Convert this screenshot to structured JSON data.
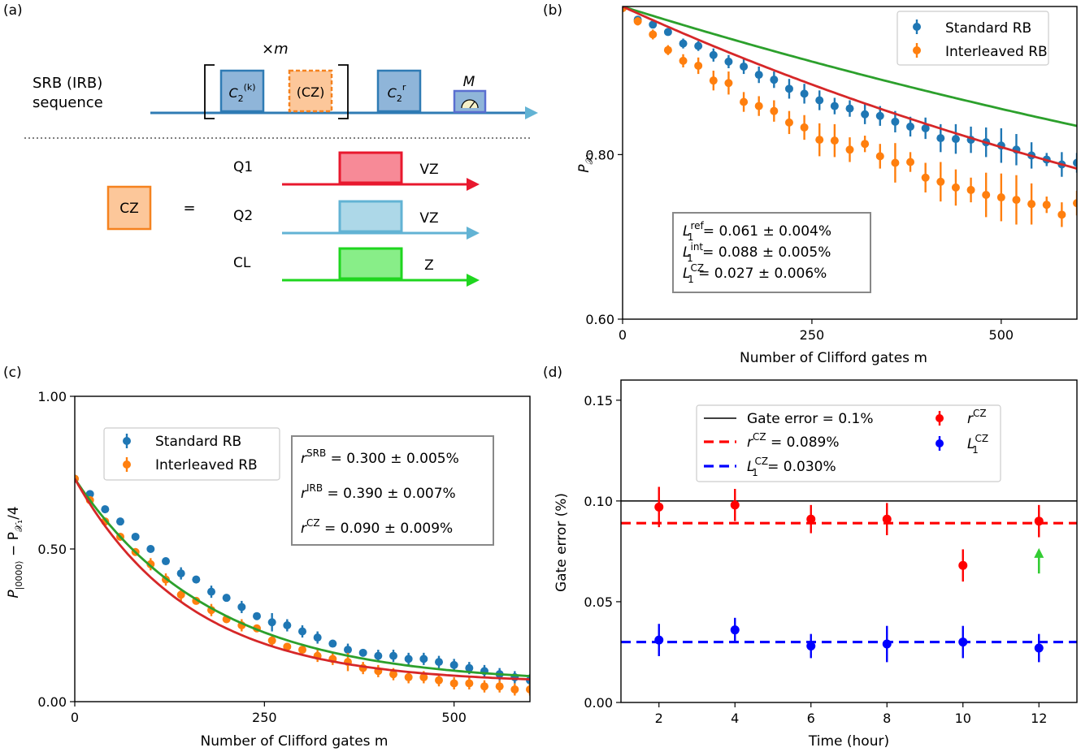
{
  "panel_labels": {
    "a": "(a)",
    "b": "(b)",
    "c": "(c)",
    "d": "(d)"
  },
  "diagram": {
    "sequence_label_line1": "SRB (IRB)",
    "sequence_label_line2": "sequence",
    "repeat_label": "×m",
    "gate_c2k_main": "C",
    "gate_c2k_sub": "2",
    "gate_c2k_sup": "(k)",
    "gate_cz_paren": "(CZ)",
    "gate_c2r_main": "C",
    "gate_c2r_sub": "2",
    "gate_c2r_sup": "r",
    "measure_label": "M",
    "cz_box": "CZ",
    "equals": "=",
    "lines": [
      {
        "label": "Q1",
        "suffix": "VZ",
        "color": "#e8182e",
        "fill": "#f78a97"
      },
      {
        "label": "Q2",
        "suffix": "VZ",
        "color": "#62b3d4",
        "fill": "#add8e8"
      },
      {
        "label": "CL",
        "suffix": "Z",
        "color": "#1fd61f",
        "fill": "#88ee88"
      }
    ],
    "colors": {
      "seq_line": "#2f7bb4",
      "gate_fill": "#8fb5d9",
      "gate_edge": "#2f7bb4",
      "cz_fill": "#fcc79a",
      "cz_edge": "#f5821f"
    }
  },
  "chart_data": [
    {
      "id": "b",
      "type": "scatter",
      "xlabel": "Number of Clifford gates m",
      "ylabel_main": "P",
      "ylabel_sub": "𝒳₁",
      "xlim": [
        0,
        600
      ],
      "ylim": [
        0.6,
        0.98
      ],
      "xticks": [
        0,
        250,
        500
      ],
      "yticks": [
        0.6,
        0.8
      ],
      "xtick_labels": [
        "0",
        "250",
        "500"
      ],
      "ytick_labels": [
        "0.60",
        "0.80"
      ],
      "legend": [
        "Standard RB",
        "Interleaved RB"
      ],
      "fit_model": {
        "asymptote": 0.5,
        "p_srb": 0.9994,
        "p_irb": 0.99912,
        "a": 0.48
      },
      "series": [
        {
          "name": "Standard RB",
          "color": "#1f77b4",
          "fit_color": "#2ca02c",
          "x": [
            0,
            20,
            40,
            60,
            80,
            100,
            120,
            140,
            160,
            180,
            200,
            220,
            240,
            260,
            280,
            300,
            320,
            340,
            360,
            380,
            400,
            420,
            440,
            460,
            480,
            500,
            520,
            540,
            560,
            580,
            600
          ],
          "y": [
            0.978,
            0.964,
            0.958,
            0.949,
            0.935,
            0.932,
            0.921,
            0.913,
            0.907,
            0.897,
            0.891,
            0.88,
            0.874,
            0.866,
            0.859,
            0.856,
            0.849,
            0.847,
            0.84,
            0.834,
            0.832,
            0.82,
            0.819,
            0.818,
            0.815,
            0.811,
            0.806,
            0.799,
            0.794,
            0.788,
            0.79
          ],
          "err": [
            0.003,
            0.004,
            0.004,
            0.004,
            0.006,
            0.006,
            0.008,
            0.008,
            0.009,
            0.01,
            0.01,
            0.012,
            0.012,
            0.012,
            0.01,
            0.01,
            0.012,
            0.012,
            0.013,
            0.012,
            0.013,
            0.017,
            0.018,
            0.016,
            0.018,
            0.021,
            0.019,
            0.016,
            0.008,
            0.015,
            0.012
          ]
        },
        {
          "name": "Interleaved RB",
          "color": "#ff7f0e",
          "fit_color": "#d62728",
          "x": [
            0,
            20,
            40,
            60,
            80,
            100,
            120,
            140,
            160,
            180,
            200,
            220,
            240,
            260,
            280,
            300,
            320,
            340,
            360,
            380,
            400,
            420,
            440,
            460,
            480,
            500,
            520,
            540,
            560,
            580,
            600
          ],
          "y": [
            0.978,
            0.962,
            0.946,
            0.927,
            0.914,
            0.908,
            0.89,
            0.887,
            0.864,
            0.859,
            0.853,
            0.839,
            0.833,
            0.818,
            0.817,
            0.806,
            0.813,
            0.798,
            0.79,
            0.791,
            0.772,
            0.767,
            0.76,
            0.757,
            0.751,
            0.748,
            0.745,
            0.74,
            0.739,
            0.727,
            0.741
          ],
          "err": [
            0.003,
            0.005,
            0.006,
            0.006,
            0.008,
            0.01,
            0.012,
            0.014,
            0.012,
            0.012,
            0.013,
            0.014,
            0.015,
            0.02,
            0.02,
            0.015,
            0.01,
            0.015,
            0.024,
            0.012,
            0.018,
            0.024,
            0.022,
            0.015,
            0.027,
            0.029,
            0.03,
            0.025,
            0.01,
            0.015,
            0.015
          ]
        }
      ],
      "annotation_lines": [
        {
          "sym": "L",
          "sub": "1",
          "sup": "ref",
          "value": " = 0.061 ± 0.004%"
        },
        {
          "sym": "L",
          "sub": "1",
          "sup": "int",
          "value": " = 0.088 ± 0.005%"
        },
        {
          "sym": "L",
          "sub": "1",
          "sup": "CZ",
          "value": " = 0.027 ± 0.006%"
        }
      ]
    },
    {
      "id": "c",
      "type": "scatter",
      "xlabel": "Number of Clifford gates m",
      "ylabel_main": "P",
      "ylabel_ket": "|0000⟩",
      "ylabel_rest": " − P",
      "ylabel_sub2": "𝒳₁",
      "ylabel_tail": "/4",
      "xlim": [
        0,
        600
      ],
      "ylim": [
        0,
        1.0
      ],
      "xticks": [
        0,
        250,
        500
      ],
      "yticks": [
        0,
        0.5,
        1.0
      ],
      "xtick_labels": [
        "0",
        "250",
        "500"
      ],
      "ytick_labels": [
        "0.00",
        "0.50",
        "1.00"
      ],
      "legend": [
        "Standard RB",
        "Interleaved RB"
      ],
      "fit_model": {
        "asymptote": 0.06,
        "p_srb": 0.99445,
        "p_irb": 0.99345,
        "a": 0.67
      },
      "series": [
        {
          "name": "Standard RB",
          "color": "#1f77b4",
          "fit_color": "#2ca02c",
          "x": [
            0,
            20,
            40,
            60,
            80,
            100,
            120,
            140,
            160,
            180,
            200,
            220,
            240,
            260,
            280,
            300,
            320,
            340,
            360,
            380,
            400,
            420,
            440,
            460,
            480,
            500,
            520,
            540,
            560,
            580,
            600
          ],
          "y": [
            0.73,
            0.68,
            0.63,
            0.59,
            0.54,
            0.5,
            0.46,
            0.42,
            0.4,
            0.36,
            0.34,
            0.31,
            0.28,
            0.26,
            0.25,
            0.23,
            0.21,
            0.19,
            0.17,
            0.16,
            0.15,
            0.15,
            0.14,
            0.14,
            0.13,
            0.12,
            0.11,
            0.1,
            0.09,
            0.08,
            0.07
          ],
          "err": [
            0.01,
            0.01,
            0.01,
            0.01,
            0.01,
            0.01,
            0.01,
            0.02,
            0.01,
            0.02,
            0.01,
            0.02,
            0.01,
            0.03,
            0.02,
            0.02,
            0.02,
            0.01,
            0.02,
            0.01,
            0.02,
            0.02,
            0.02,
            0.02,
            0.02,
            0.02,
            0.02,
            0.02,
            0.02,
            0.02,
            0.02
          ]
        },
        {
          "name": "Interleaved RB",
          "color": "#ff7f0e",
          "fit_color": "#d62728",
          "x": [
            0,
            20,
            40,
            60,
            80,
            100,
            120,
            140,
            160,
            180,
            200,
            220,
            240,
            260,
            280,
            300,
            320,
            340,
            360,
            380,
            400,
            420,
            440,
            460,
            480,
            500,
            520,
            540,
            560,
            580,
            600
          ],
          "y": [
            0.73,
            0.66,
            0.59,
            0.54,
            0.49,
            0.45,
            0.4,
            0.35,
            0.33,
            0.3,
            0.27,
            0.25,
            0.24,
            0.2,
            0.18,
            0.17,
            0.15,
            0.14,
            0.13,
            0.11,
            0.1,
            0.09,
            0.08,
            0.08,
            0.07,
            0.06,
            0.06,
            0.05,
            0.05,
            0.04,
            0.04
          ],
          "err": [
            0.01,
            0.01,
            0.01,
            0.01,
            0.01,
            0.02,
            0.02,
            0.02,
            0.01,
            0.02,
            0.01,
            0.02,
            0.01,
            0.02,
            0.01,
            0.01,
            0.02,
            0.02,
            0.03,
            0.02,
            0.02,
            0.02,
            0.02,
            0.02,
            0.02,
            0.02,
            0.02,
            0.02,
            0.02,
            0.02,
            0.02
          ]
        }
      ],
      "annotation_lines": [
        {
          "sym": "r",
          "sup": "SRB",
          "value": " = 0.300 ± 0.005%"
        },
        {
          "sym": "r",
          "sup": "IRB",
          "value": " = 0.390 ± 0.007%"
        },
        {
          "sym": "r",
          "sup": "CZ",
          "value": " = 0.090 ± 0.009%"
        }
      ]
    },
    {
      "id": "d",
      "type": "scatter",
      "xlabel": "Time (hour)",
      "ylabel": "Gate error (%)",
      "xlim": [
        1,
        13
      ],
      "ylim": [
        0,
        0.16
      ],
      "xticks": [
        2,
        4,
        6,
        8,
        10,
        12
      ],
      "yticks": [
        0,
        0.05,
        0.1,
        0.15
      ],
      "xtick_labels": [
        "2",
        "4",
        "6",
        "8",
        "10",
        "12"
      ],
      "ytick_labels": [
        "0.00",
        "0.05",
        "0.10",
        "0.15"
      ],
      "hlines": [
        {
          "y": 0.1,
          "color": "#000000",
          "style": "solid",
          "label": "Gate error = 0.1%"
        },
        {
          "y": 0.089,
          "color": "#ff0000",
          "style": "dashed",
          "label_sym": "r",
          "label_sup": "CZ",
          "label_value": " = 0.089%"
        },
        {
          "y": 0.03,
          "color": "#0000ff",
          "style": "dashed",
          "label_sym": "L",
          "label_sub": "1",
          "label_sup": "CZ",
          "label_value": " = 0.030%"
        }
      ],
      "series": [
        {
          "name_sym": "r",
          "name_sup": "CZ",
          "color": "#ff0000",
          "x": [
            2,
            4,
            6,
            8,
            10,
            12
          ],
          "y": [
            0.097,
            0.098,
            0.091,
            0.091,
            0.068,
            0.09
          ],
          "err": [
            0.01,
            0.008,
            0.007,
            0.008,
            0.008,
            0.008
          ]
        },
        {
          "name_sym": "L",
          "name_sub": "1",
          "name_sup": "CZ",
          "color": "#0000ff",
          "x": [
            2,
            4,
            6,
            8,
            10,
            12
          ],
          "y": [
            0.031,
            0.036,
            0.028,
            0.029,
            0.03,
            0.027
          ],
          "err": [
            0.008,
            0.006,
            0.006,
            0.009,
            0.008,
            0.007
          ]
        }
      ],
      "arrow": {
        "x": 12,
        "y_from": 0.064,
        "y_to": 0.075,
        "color": "#33cc33"
      }
    }
  ]
}
